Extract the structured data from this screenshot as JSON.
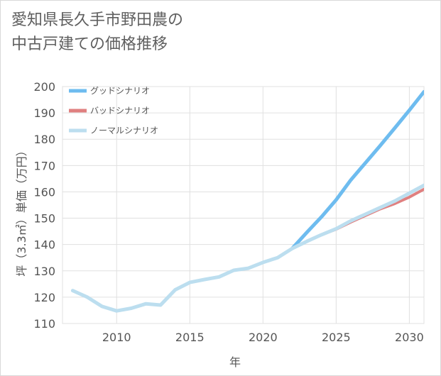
{
  "title": "愛知県長久手市野田農の\n中古戸建ての価格推移",
  "chart_data": {
    "type": "line",
    "xlabel": "年",
    "ylabel": "坪（3.3㎡）単価（万円）",
    "xlim": [
      2006.3,
      2031
    ],
    "ylim": [
      110,
      200
    ],
    "xticks": [
      2010,
      2015,
      2020,
      2025,
      2030
    ],
    "yticks": [
      110,
      120,
      130,
      140,
      150,
      160,
      170,
      180,
      190,
      200
    ],
    "grid": true,
    "legend_position": "top-left",
    "series": [
      {
        "name": "グッドシナリオ",
        "color": "#6ebcef",
        "x": [
          2022,
          2023,
          2024,
          2025,
          2026,
          2027,
          2028,
          2029,
          2030,
          2031
        ],
        "y": [
          138.5,
          144.6,
          150.5,
          157.0,
          164.5,
          171.0,
          177.5,
          184.2,
          191.0,
          198.0
        ]
      },
      {
        "name": "バッドシナリオ",
        "color": "#e08080",
        "x": [
          2022,
          2023,
          2024,
          2025,
          2026,
          2027,
          2028,
          2029,
          2030,
          2031
        ],
        "y": [
          138.5,
          141.2,
          143.7,
          145.8,
          148.5,
          151.0,
          153.5,
          155.5,
          158.0,
          161.0
        ]
      },
      {
        "name": "ノーマルシナリオ",
        "color": "#bcdeef",
        "x": [
          2007,
          2008,
          2009,
          2010,
          2011,
          2012,
          2013,
          2014,
          2015,
          2016,
          2017,
          2018,
          2019,
          2020,
          2021,
          2022,
          2023,
          2024,
          2025,
          2026,
          2027,
          2028,
          2029,
          2030,
          2031
        ],
        "y": [
          122.5,
          120.0,
          116.5,
          114.8,
          115.8,
          117.5,
          117.0,
          122.8,
          125.6,
          126.7,
          127.7,
          130.2,
          131.0,
          133.2,
          135.0,
          138.5,
          141.2,
          143.7,
          146.0,
          149.0,
          151.5,
          154.0,
          156.5,
          159.5,
          162.5
        ]
      }
    ]
  }
}
